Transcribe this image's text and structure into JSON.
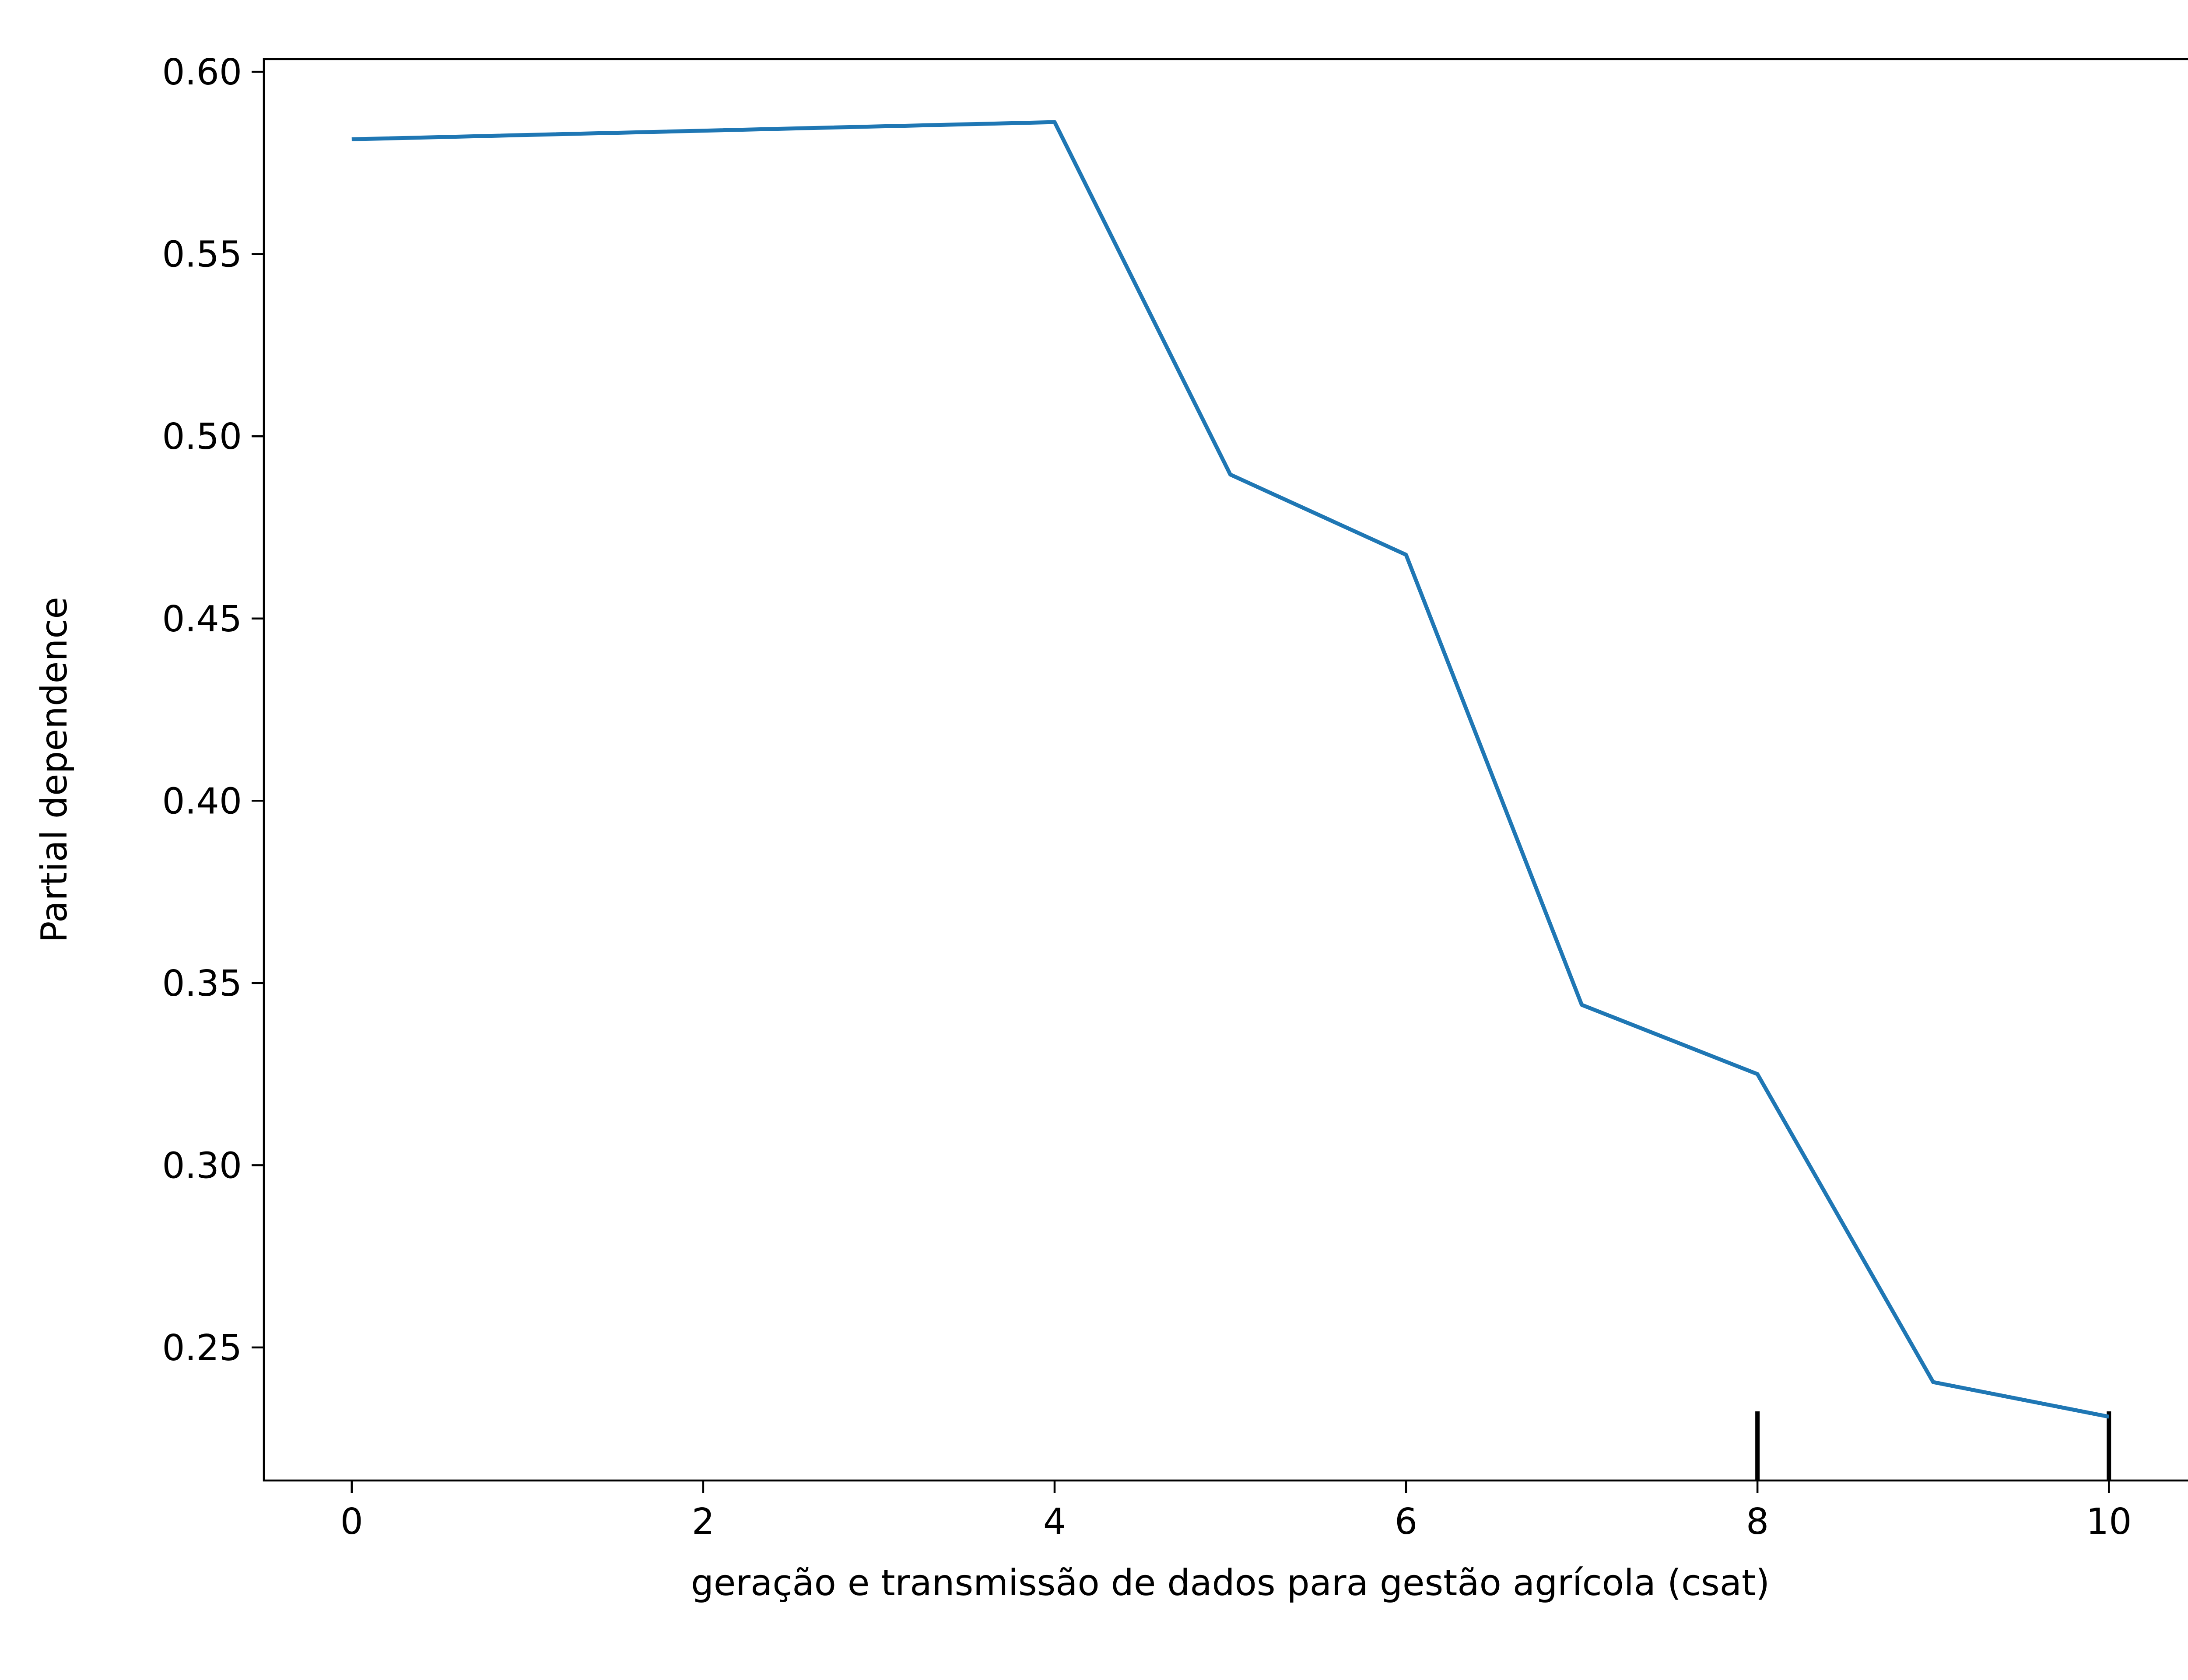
{
  "chart_data": {
    "type": "line",
    "title": "",
    "xlabel": "geração e transmissão de dados para gestão agrícola (csat)",
    "ylabel": "Partial dependence",
    "xlim": [
      -0.5,
      10.5
    ],
    "ylim": [
      0.2135,
      0.6035
    ],
    "xticks": [
      0,
      2,
      4,
      6,
      8,
      10
    ],
    "xtick_labels": [
      "0",
      "2",
      "4",
      "6",
      "8",
      "10"
    ],
    "yticks": [
      0.25,
      0.3,
      0.35,
      0.4,
      0.45,
      0.5,
      0.55,
      0.6
    ],
    "ytick_labels": [
      "0.25",
      "0.30",
      "0.35",
      "0.40",
      "0.45",
      "0.50",
      "0.55",
      "0.60"
    ],
    "grid": false,
    "series": [
      {
        "color": "#1f77b4",
        "x": [
          0,
          4,
          5,
          6,
          7,
          8,
          9,
          10
        ],
        "y": [
          0.5815,
          0.5862,
          0.4895,
          0.4675,
          0.344,
          0.325,
          0.2405,
          0.231
        ]
      }
    ],
    "rug_x": [
      8,
      10
    ],
    "rug_color": "#000000"
  }
}
